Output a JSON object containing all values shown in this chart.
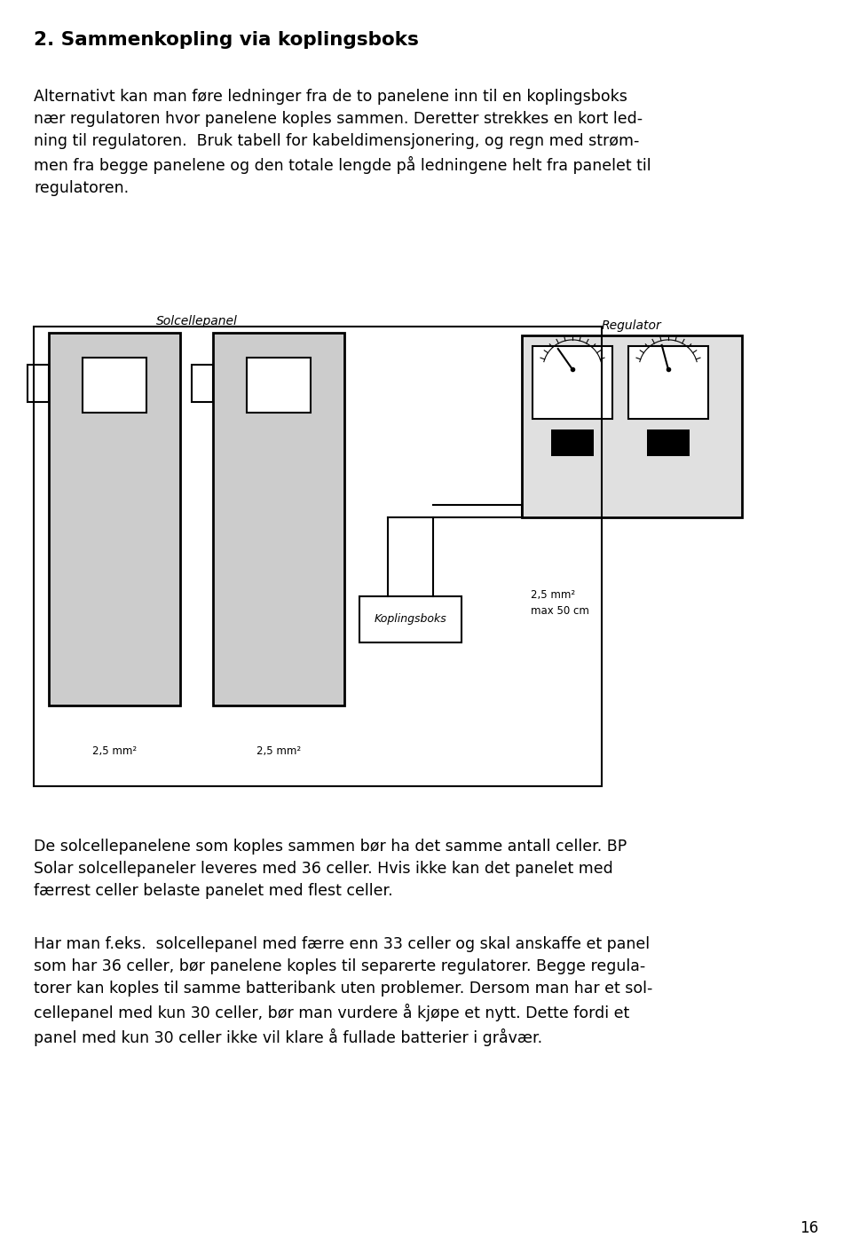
{
  "heading": "2. Sammenkopling via koplingsboks",
  "para1": "Alternativt kan man føre ledninger fra de to panelene inn til en koplingsboks\nnær regulatoren hvor panelene koples sammen. Deretter strekkes en kort led-\nning til regulatoren.  Bruk tabell for kabeldimensjonering, og regn med strøm-\nmen fra begge panelene og den totale lengde på ledningene helt fra panelet til\nregulatoren.",
  "para2": "De solcellepanelene som koples sammen bør ha det samme antall celler. BP\nSolar solcellepaneler leveres med 36 celler. Hvis ikke kan det panelet med\nfærrest celler belaste panelet med flest celler.",
  "para3": "Har man f.eks.  solcellepanel med færre enn 33 celler og skal anskaffe et panel\nsom har 36 celler, bør panelene koples til separerte regulatorer. Begge regula-\ntorer kan koples til samme batteribank uten problemer. Dersom man har et sol-\ncellepanel med kun 30 celler, bør man vurdere å kjøpe et nytt. Dette fordi et\npanel med kun 30 celler ikke vil klare å fullade batterier i gråvær.",
  "label_solcellepanel": "Solcellepanel",
  "label_regulator": "Regulator",
  "label_koplingsboks": "Koplingsboks",
  "label_25mm2_left": "2,5 mm²",
  "label_25mm2_mid": "2,5 mm²",
  "label_25mm2_right": "2,5 mm²\nmax 50 cm",
  "page_number": "16",
  "bg_color": "#ffffff",
  "text_color": "#000000"
}
